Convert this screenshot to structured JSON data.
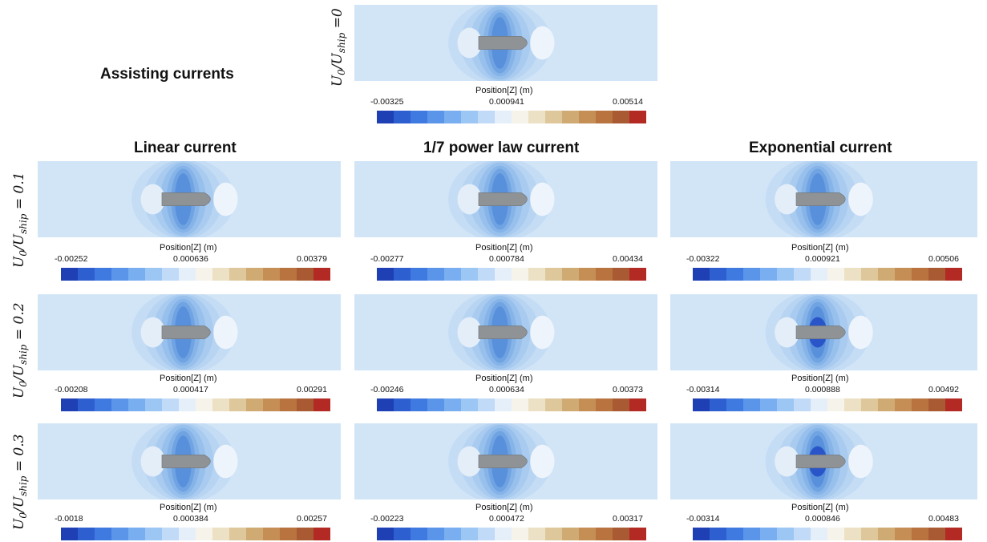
{
  "headings": {
    "assisting": "Assisting currents",
    "linear": "Linear current",
    "power": "1/7 power law current",
    "exponential": "Exponential current"
  },
  "ratio_labels": {
    "r0": {
      "base": "U",
      "sub0": "0",
      "slash": "/U",
      "sub1": "ship",
      "value": " =0"
    },
    "r1": {
      "base": "U",
      "sub0": "0",
      "slash": "/U",
      "sub1": "ship",
      "value": " = 0.1"
    },
    "r2": {
      "base": "U",
      "sub0": "0",
      "slash": "/U",
      "sub1": "ship",
      "value": " = 0.2"
    },
    "r3": {
      "base": "U",
      "sub0": "0",
      "slash": "/U",
      "sub1": "ship",
      "value": " = 0.3"
    }
  },
  "colors": {
    "background": "#d1e5f7",
    "scale": [
      "#1f3fb5",
      "#2d5fd0",
      "#3f7ae0",
      "#5a95ea",
      "#79aef0",
      "#9cc6f4",
      "#c0daf8",
      "#e4eff9",
      "#f6f3ea",
      "#ece1c4",
      "#ddc79b",
      "#cfaa72",
      "#c48e55",
      "#b8733f",
      "#a95a33",
      "#b32a24"
    ]
  },
  "panels": {
    "top": {
      "title": "Position[Z] (m)",
      "min": "-0.00325",
      "mid": "0.000941",
      "max": "0.00514",
      "hole": false
    },
    "lin1": {
      "title": "Position[Z] (m)",
      "min": "-0.00252",
      "mid": "0.000636",
      "max": "0.00379",
      "hole": false
    },
    "pow1": {
      "title": "Position[Z] (m)",
      "min": "-0.00277",
      "mid": "0.000784",
      "max": "0.00434",
      "hole": false
    },
    "exp1": {
      "title": "Position[Z] (m)",
      "min": "-0.00322",
      "mid": "0.000921",
      "max": "0.00506",
      "hole": false
    },
    "lin2": {
      "title": "Position[Z] (m)",
      "min": "-0.00208",
      "mid": "0.000417",
      "max": "0.00291",
      "hole": false
    },
    "pow2": {
      "title": "Position[Z] (m)",
      "min": "-0.00246",
      "mid": "0.000634",
      "max": "0.00373",
      "hole": false
    },
    "exp2": {
      "title": "Position[Z] (m)",
      "min": "-0.00314",
      "mid": "0.000888",
      "max": "0.00492",
      "hole": true
    },
    "lin3": {
      "title": "Position[Z] (m)",
      "min": "-0.0018",
      "mid": "0.000384",
      "max": "0.00257",
      "hole": false
    },
    "pow3": {
      "title": "Position[Z] (m)",
      "min": "-0.00223",
      "mid": "0.000472",
      "max": "0.00317",
      "hole": false
    },
    "exp3": {
      "title": "Position[Z] (m)",
      "min": "-0.00314",
      "mid": "0.000846",
      "max": "0.00483",
      "hole": true
    }
  }
}
